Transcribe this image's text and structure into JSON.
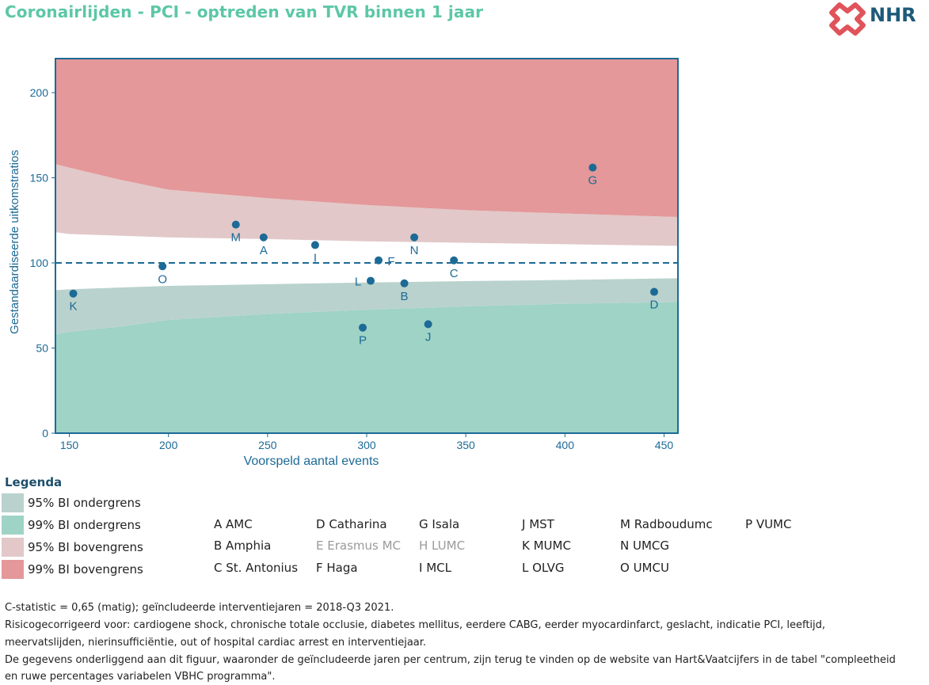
{
  "title": "Coronairlijden - PCI - optreden van TVR binnen 1 jaar",
  "logo": {
    "icon": "nhr-logo-icon",
    "text": "NHR",
    "color": "#e0535a"
  },
  "chart_data": {
    "type": "scatter",
    "title": "Coronairlijden - PCI - optreden van TVR binnen 1 jaar",
    "xlabel": "Voorspeld aantal events",
    "ylabel": "Gestandaardiseerde uitkomstratios",
    "xlim": [
      143,
      457
    ],
    "ylim": [
      0,
      220
    ],
    "xticks": [
      150,
      200,
      250,
      300,
      350,
      400,
      450
    ],
    "yticks": [
      0,
      50,
      100,
      150,
      200
    ],
    "reference_line": 100,
    "colors": {
      "ci99_lower": "#9ed3c6",
      "ci95_lower": "#b9d2cd",
      "ci95_upper": "#e2c8c9",
      "ci99_upper": "#e49899",
      "points": "#1d6a96",
      "axis": "#1d6a96"
    },
    "bands": {
      "x": [
        143,
        150,
        175,
        200,
        250,
        300,
        350,
        400,
        457
      ],
      "ci99_lower": [
        58,
        59.5,
        62.5,
        66.5,
        70,
        72.5,
        74.5,
        76,
        77
      ],
      "ci95_lower": [
        84,
        84.5,
        85.5,
        86.5,
        87.5,
        88.5,
        89.3,
        90,
        91
      ],
      "ci95_upper": [
        118,
        117,
        116,
        115,
        114,
        112.7,
        111.8,
        111,
        110
      ],
      "ci99_upper": [
        158,
        156,
        149,
        143,
        138,
        134,
        131,
        129,
        127
      ]
    },
    "points": [
      {
        "label": "K",
        "x": 152,
        "y": 82
      },
      {
        "label": "O",
        "x": 197,
        "y": 98
      },
      {
        "label": "M",
        "x": 234,
        "y": 122.5
      },
      {
        "label": "A",
        "x": 248,
        "y": 115
      },
      {
        "label": "I",
        "x": 274,
        "y": 110.5
      },
      {
        "label": "L",
        "x": 302,
        "y": 89.5
      },
      {
        "label": "F",
        "x": 306,
        "y": 101.5
      },
      {
        "label": "P",
        "x": 298,
        "y": 62
      },
      {
        "label": "B",
        "x": 319,
        "y": 88
      },
      {
        "label": "N",
        "x": 324,
        "y": 115
      },
      {
        "label": "J",
        "x": 331,
        "y": 64
      },
      {
        "label": "C",
        "x": 344,
        "y": 101.5
      },
      {
        "label": "G",
        "x": 414,
        "y": 156
      },
      {
        "label": "D",
        "x": 445,
        "y": 83
      }
    ]
  },
  "legend": {
    "title": "Legenda",
    "items": [
      {
        "label": "95% BI ondergrens",
        "color": "#b9d2cd"
      },
      {
        "label": "99% BI ondergrens",
        "color": "#9ed3c6"
      },
      {
        "label": "95% BI bovengrens",
        "color": "#e2c8c9"
      },
      {
        "label": "99% BI bovengrens",
        "color": "#e49899"
      }
    ]
  },
  "centers": [
    {
      "code": "A",
      "text": "A AMC",
      "greyed": false
    },
    {
      "code": "B",
      "text": "B Amphia",
      "greyed": false
    },
    {
      "code": "C",
      "text": "C St. Antonius",
      "greyed": false
    },
    {
      "code": "D",
      "text": "D Catharina",
      "greyed": false
    },
    {
      "code": "E",
      "text": "E Erasmus MC",
      "greyed": true
    },
    {
      "code": "F",
      "text": "F Haga",
      "greyed": false
    },
    {
      "code": "G",
      "text": "G Isala",
      "greyed": false
    },
    {
      "code": "H",
      "text": "H LUMC",
      "greyed": true
    },
    {
      "code": "I",
      "text": "I MCL",
      "greyed": false
    },
    {
      "code": "J",
      "text": "J MST",
      "greyed": false
    },
    {
      "code": "K",
      "text": "K MUMC",
      "greyed": false
    },
    {
      "code": "L",
      "text": "L OLVG",
      "greyed": false
    },
    {
      "code": "M",
      "text": "M Radboudumc",
      "greyed": false
    },
    {
      "code": "N",
      "text": "N UMCG",
      "greyed": false
    },
    {
      "code": "O",
      "text": "O UMCU",
      "greyed": false
    },
    {
      "code": "P",
      "text": "P VUMC",
      "greyed": false
    }
  ],
  "footnotes": {
    "line1": "C-statistic =  0,65 (matig); geïncludeerde interventiejaren = 2018-Q3 2021.",
    "line2": "Risicogecorrigeerd voor: cardiogene shock, chronische totale occlusie, diabetes mellitus, eerdere CABG, eerder myocardinfarct, geslacht, indicatie PCI, leeftijd,",
    "line3": "meervatslijden, nierinsufficiëntie, out of hospital cardiac arrest en interventiejaar.",
    "line4": "De gegevens onderliggend aan dit figuur, waaronder de geïncludeerde jaren per centrum, zijn terug te vinden op de website van Hart&Vaatcijfers in de tabel \"compleetheid",
    "line5": "en ruwe percentages variabelen VBHC programma\"."
  }
}
